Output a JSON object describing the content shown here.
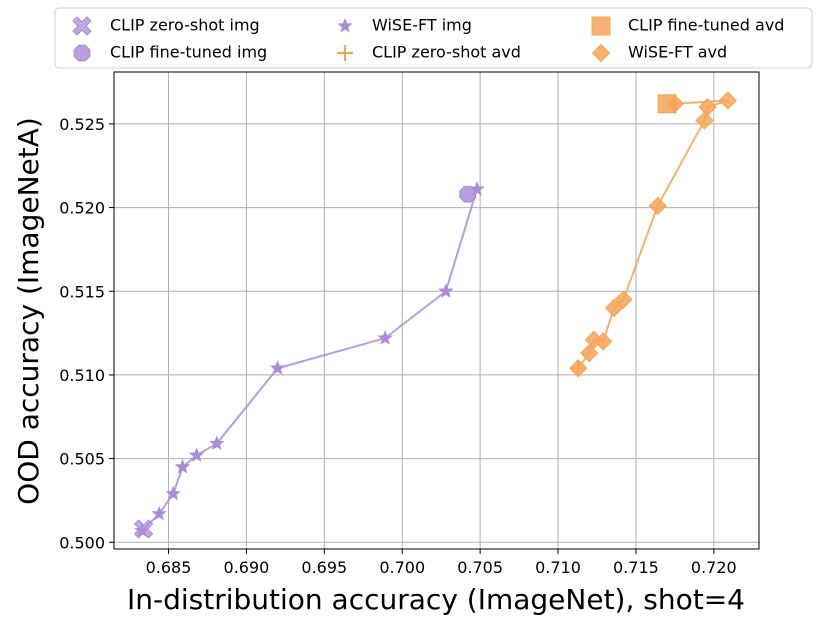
{
  "chart_data": {
    "type": "line",
    "title": "",
    "xlabel": "In-distribution accuracy (ImageNet), shot=4",
    "ylabel": "OOD accuracy (ImageNetA)",
    "xlim": [
      0.6815,
      0.7229
    ],
    "ylim": [
      0.4996,
      0.5281
    ],
    "grid": true,
    "legend_position": "top",
    "xticks": [
      0.685,
      0.69,
      0.695,
      0.7,
      0.705,
      0.71,
      0.715,
      0.72
    ],
    "xtick_labels": [
      "0.685",
      "0.690",
      "0.695",
      "0.700",
      "0.705",
      "0.710",
      "0.715",
      "0.720"
    ],
    "yticks": [
      0.5,
      0.505,
      0.51,
      0.515,
      0.52,
      0.525
    ],
    "ytick_labels": [
      "0.500",
      "0.505",
      "0.510",
      "0.515",
      "0.520",
      "0.525"
    ],
    "colors": {
      "img": "#a98ed6",
      "avd": "#f5a559"
    },
    "series": [
      {
        "name": "CLIP zero-shot img",
        "marker": "x",
        "color": "#a98ed6",
        "line": false,
        "points": [
          [
            0.6834,
            0.5008
          ]
        ]
      },
      {
        "name": "CLIP fine-tuned img",
        "marker": "octagon",
        "color": "#a98ed6",
        "line": false,
        "points": [
          [
            0.7042,
            0.5208
          ]
        ]
      },
      {
        "name": "WiSE-FT img",
        "marker": "star",
        "color": "#a98ed6",
        "line": true,
        "points": [
          [
            0.6833,
            0.5007
          ],
          [
            0.6844,
            0.5017
          ],
          [
            0.6853,
            0.5029
          ],
          [
            0.6859,
            0.5045
          ],
          [
            0.6868,
            0.5052
          ],
          [
            0.6881,
            0.5059
          ],
          [
            0.692,
            0.5104
          ],
          [
            0.6989,
            0.5122
          ],
          [
            0.7028,
            0.515
          ],
          [
            0.7048,
            0.5211
          ]
        ]
      },
      {
        "name": "CLIP zero-shot avd",
        "marker": "plus",
        "color": "#f5a559",
        "line": false,
        "points": [
          [
            0.7113,
            0.5104
          ]
        ]
      },
      {
        "name": "CLIP fine-tuned avd",
        "marker": "square",
        "color": "#f5a559",
        "line": false,
        "points": [
          [
            0.717,
            0.5262
          ]
        ]
      },
      {
        "name": "WiSE-FT avd",
        "marker": "diamond",
        "color": "#f5a559",
        "line": true,
        "points": [
          [
            0.7113,
            0.5104
          ],
          [
            0.712,
            0.5113
          ],
          [
            0.7123,
            0.5121
          ],
          [
            0.7129,
            0.512
          ],
          [
            0.7136,
            0.514
          ],
          [
            0.7142,
            0.5145
          ],
          [
            0.7164,
            0.5201
          ],
          [
            0.7194,
            0.5252
          ],
          [
            0.7196,
            0.526
          ],
          [
            0.7209,
            0.5264
          ],
          [
            0.7175,
            0.5262
          ]
        ]
      }
    ]
  }
}
